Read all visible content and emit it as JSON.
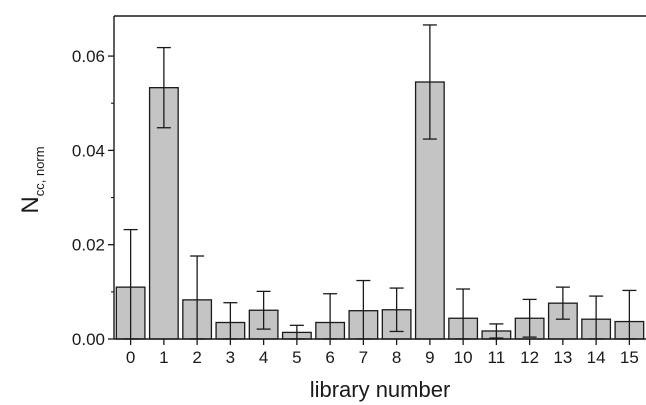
{
  "chart_data": {
    "type": "bar",
    "xlabel": "library number",
    "ylabel": {
      "main": "N",
      "subscript": "cc, norm"
    },
    "categories": [
      "0",
      "1",
      "2",
      "3",
      "4",
      "5",
      "6",
      "7",
      "8",
      "9",
      "10",
      "11",
      "12",
      "13",
      "14",
      "15"
    ],
    "values": [
      0.011,
      0.0533,
      0.0083,
      0.0035,
      0.0061,
      0.0014,
      0.0035,
      0.006,
      0.0062,
      0.0545,
      0.0044,
      0.0017,
      0.0044,
      0.0076,
      0.0042,
      0.0037
    ],
    "errors": [
      0.0122,
      0.0085,
      0.0093,
      0.0042,
      0.004,
      0.0015,
      0.0061,
      0.0064,
      0.0046,
      0.0121,
      0.0062,
      0.0015,
      0.004,
      0.0034,
      0.0049,
      0.0066
    ],
    "ylim": [
      0,
      0.0685
    ],
    "yticks": [
      0.0,
      0.02,
      0.04,
      0.06
    ],
    "ytick_labels": [
      "0.00",
      "0.02",
      "0.04",
      "0.06"
    ],
    "bar_color": "#c4c4c4",
    "edge_color": "#1a1a1a",
    "grid": false
  }
}
